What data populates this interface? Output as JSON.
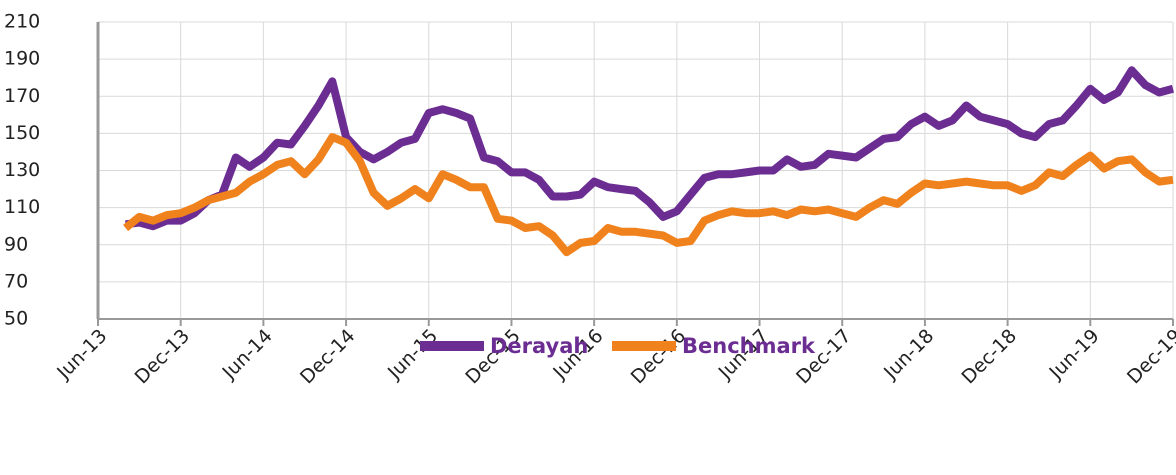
{
  "chart_data": {
    "type": "line",
    "categories": [
      "Jun-13",
      null,
      null,
      null,
      null,
      null,
      "Dec-13",
      null,
      null,
      null,
      null,
      null,
      "Jun-14",
      null,
      null,
      null,
      null,
      null,
      "Dec-14",
      null,
      null,
      null,
      null,
      null,
      "Jun-15",
      null,
      null,
      null,
      null,
      null,
      "Dec-15",
      null,
      null,
      null,
      null,
      null,
      "Jun-16",
      null,
      null,
      null,
      null,
      null,
      "Dec-16",
      null,
      null,
      null,
      null,
      null,
      "Jun-17",
      null,
      null,
      null,
      null,
      null,
      "Dec-17",
      null,
      null,
      null,
      null,
      null,
      "Jun-18",
      null,
      null,
      null,
      null,
      null,
      "Dec-18",
      null,
      null,
      null,
      null,
      null,
      "Jun-19",
      null,
      null,
      null,
      null,
      null,
      "Dec-19"
    ],
    "series": [
      {
        "name": "Derayah",
        "color": "#6b2d92",
        "values": [
          null,
          null,
          101,
          102,
          100,
          103,
          103,
          107,
          114,
          117,
          137,
          132,
          137,
          145,
          144,
          154,
          165,
          178,
          148,
          140,
          136,
          140,
          145,
          147,
          161,
          163,
          161,
          158,
          137,
          135,
          129,
          129,
          125,
          116,
          116,
          117,
          124,
          121,
          120,
          119,
          113,
          105,
          108,
          117,
          126,
          128,
          128,
          129,
          130,
          130,
          136,
          132,
          133,
          139,
          138,
          137,
          142,
          147,
          148,
          155,
          159,
          154,
          157,
          165,
          159,
          157,
          155,
          150,
          148,
          155,
          157,
          165,
          174,
          168,
          172,
          184,
          176,
          172,
          174
        ]
      },
      {
        "name": "Benchmark",
        "color": "#f0821e",
        "values": [
          null,
          null,
          99,
          105,
          103,
          106,
          107,
          110,
          114,
          116,
          118,
          124,
          128,
          133,
          135,
          128,
          136,
          148,
          145,
          135,
          118,
          111,
          115,
          120,
          115,
          128,
          125,
          121,
          121,
          104,
          103,
          99,
          100,
          95,
          86,
          91,
          92,
          99,
          97,
          97,
          96,
          95,
          91,
          92,
          103,
          106,
          108,
          107,
          107,
          108,
          106,
          109,
          108,
          109,
          107,
          105,
          110,
          114,
          112,
          118,
          123,
          122,
          123,
          124,
          123,
          122,
          122,
          119,
          122,
          129,
          127,
          133,
          138,
          131,
          135,
          136,
          129,
          124,
          125
        ]
      }
    ],
    "ylim": [
      50,
      210
    ],
    "yticks": [
      50,
      70,
      90,
      110,
      130,
      150,
      170,
      190,
      210
    ],
    "grid": true
  }
}
